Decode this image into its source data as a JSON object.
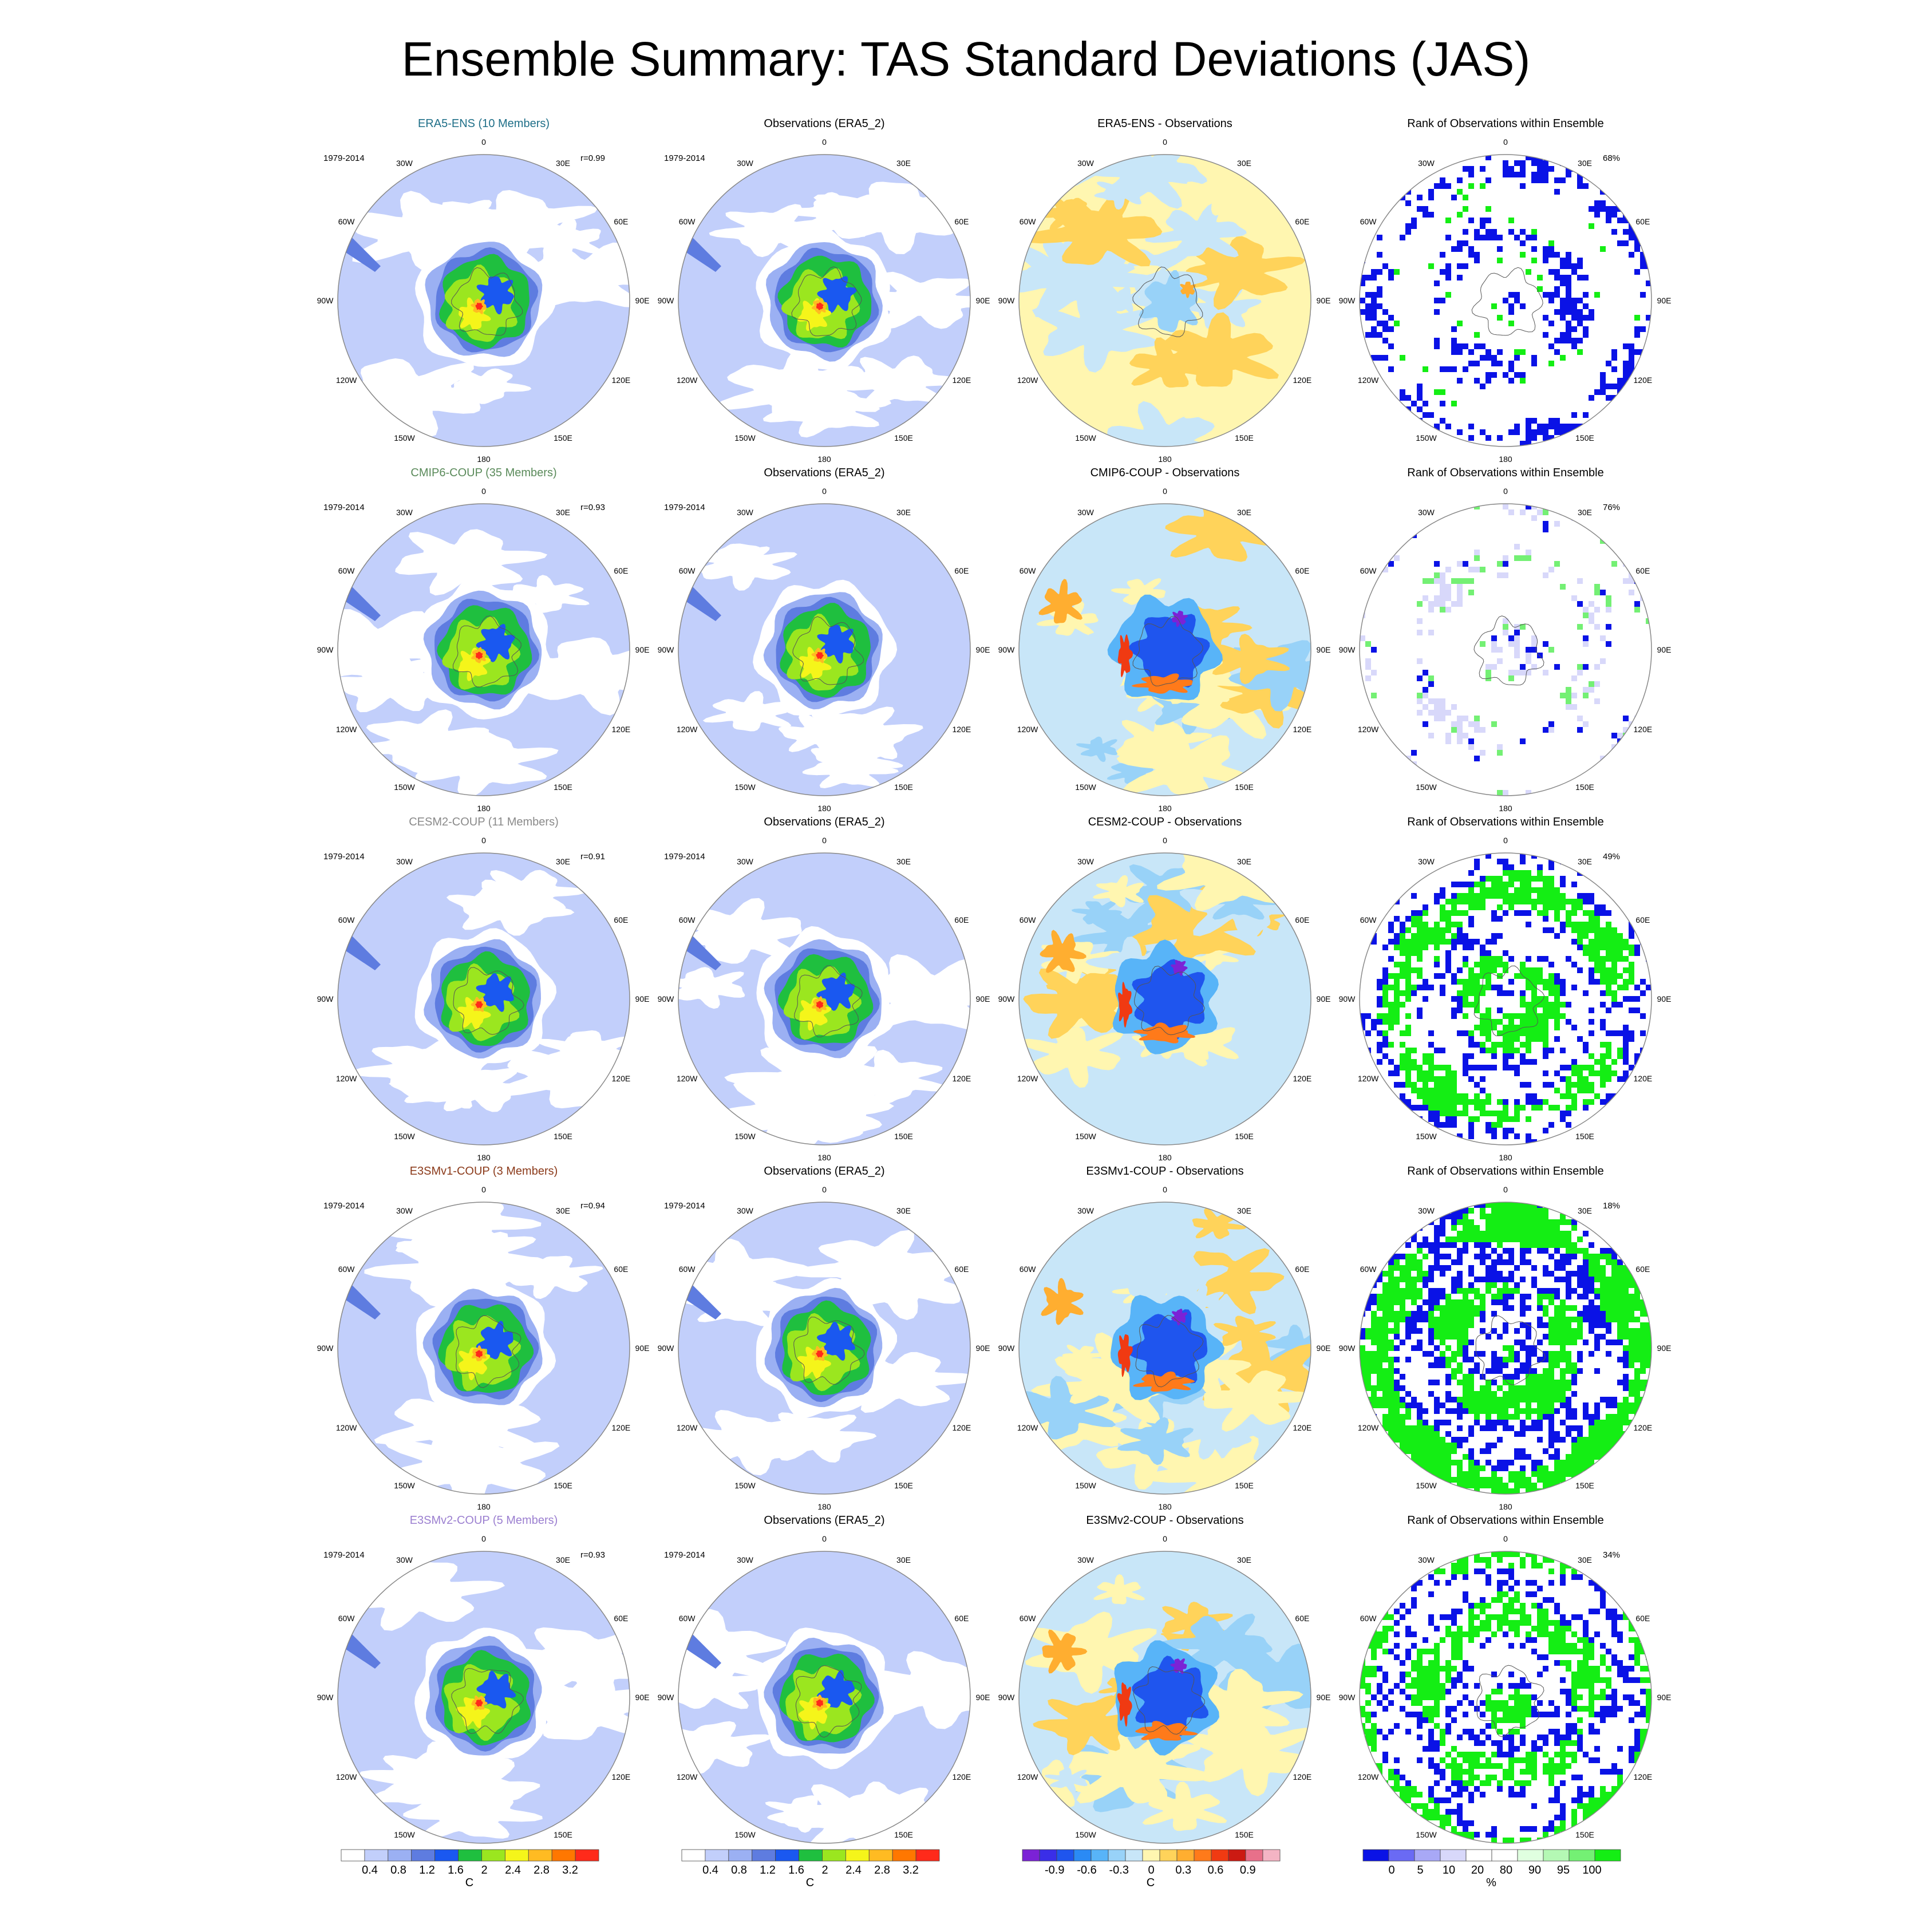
{
  "figure": {
    "title": "Ensemble Summary: TAS Standard Deviations (JAS)"
  },
  "longitude_labels": [
    "0",
    "30E",
    "60E",
    "90E",
    "120E",
    "150E",
    "180",
    "150W",
    "120W",
    "90W",
    "60W",
    "30W"
  ],
  "rows": [
    {
      "model_title": "ERA5-ENS (10 Members)",
      "model_color": "#1f6f88",
      "period": "1979-2014",
      "corr": "r=0.99",
      "obs_title": "Observations (ERA5_2)",
      "diff_title": "ERA5-ENS - Observations",
      "diff_style": "near-zero",
      "rank_title": "Rank of Observations within Ensemble",
      "rank_pct": "68%",
      "rank_style": "sparse"
    },
    {
      "model_title": "CMIP6-COUP (35 Members)",
      "model_color": "#5a8a5a",
      "period": "1979-2014",
      "corr": "r=0.93",
      "obs_title": "Observations (ERA5_2)",
      "diff_title": "CMIP6-COUP - Observations",
      "diff_style": "strong",
      "rank_title": "Rank of Observations within Ensemble",
      "rank_pct": "76%",
      "rank_style": "light"
    },
    {
      "model_title": "CESM2-COUP (11 Members)",
      "model_color": "#8a8a8a",
      "period": "1979-2014",
      "corr": "r=0.91",
      "obs_title": "Observations (ERA5_2)",
      "diff_title": "CESM2-COUP - Observations",
      "diff_style": "strong",
      "rank_title": "Rank of Observations within Ensemble",
      "rank_pct": "49%",
      "rank_style": "dense"
    },
    {
      "model_title": "E3SMv1-COUP (3 Members)",
      "model_color": "#8b3a1a",
      "period": "1979-2014",
      "corr": "r=0.94",
      "obs_title": "Observations (ERA5_2)",
      "diff_title": "E3SMv1-COUP - Observations",
      "diff_style": "strong",
      "rank_title": "Rank of Observations within Ensemble",
      "rank_pct": "18%",
      "rank_style": "very-dense"
    },
    {
      "model_title": "E3SMv2-COUP (5 Members)",
      "model_color": "#9b7fd0",
      "period": "1979-2014",
      "corr": "r=0.93",
      "obs_title": "Observations (ERA5_2)",
      "diff_title": "E3SMv2-COUP - Observations",
      "diff_style": "strong",
      "rank_title": "Rank of Observations within Ensemble",
      "rank_pct": "34%",
      "rank_style": "dense"
    }
  ],
  "colorbars": [
    {
      "id": "std",
      "unit": "C",
      "colors": [
        "#ffffff",
        "#c2cffb",
        "#9bb0f3",
        "#5e7ce0",
        "#1a58f0",
        "#1fbf3f",
        "#9be61f",
        "#f5f51a",
        "#ffbb22",
        "#ff7700",
        "#ff2a1a"
      ],
      "ticks": [
        "0.4",
        "0.8",
        "1.2",
        "1.6",
        "2",
        "2.4",
        "2.8",
        "3.2"
      ]
    },
    {
      "id": "std-obs",
      "unit": "C",
      "colors": [
        "#ffffff",
        "#c2cffb",
        "#9bb0f3",
        "#5e7ce0",
        "#1a58f0",
        "#1fbf3f",
        "#9be61f",
        "#f5f51a",
        "#ffbb22",
        "#ff7700",
        "#ff2a1a"
      ],
      "ticks": [
        "0.4",
        "0.8",
        "1.2",
        "1.6",
        "2",
        "2.4",
        "2.8",
        "3.2"
      ]
    },
    {
      "id": "diff",
      "unit": "C",
      "colors": [
        "#7b22d6",
        "#3a2ee8",
        "#1f55ee",
        "#2a8af5",
        "#58b4f8",
        "#98d2f8",
        "#c8e6f8",
        "#fff6b0",
        "#ffd35a",
        "#ffae30",
        "#ff7a1a",
        "#f03a12",
        "#cc1a12",
        "#e8708a",
        "#f4b4c4"
      ],
      "ticks": [
        "-0.9",
        "-0.6",
        "-0.3",
        "0",
        "0.3",
        "0.6",
        "0.9"
      ]
    },
    {
      "id": "rank",
      "unit": "%",
      "colors": [
        "#0a12e6",
        "#6a6af4",
        "#a8a8f6",
        "#d8d8fa",
        "#ffffff",
        "#ffffff",
        "#e0ffe0",
        "#b4f8b4",
        "#74f074",
        "#14ee14"
      ],
      "ticks": [
        "0",
        "5",
        "10",
        "20",
        "80",
        "90",
        "95",
        "100"
      ]
    }
  ]
}
